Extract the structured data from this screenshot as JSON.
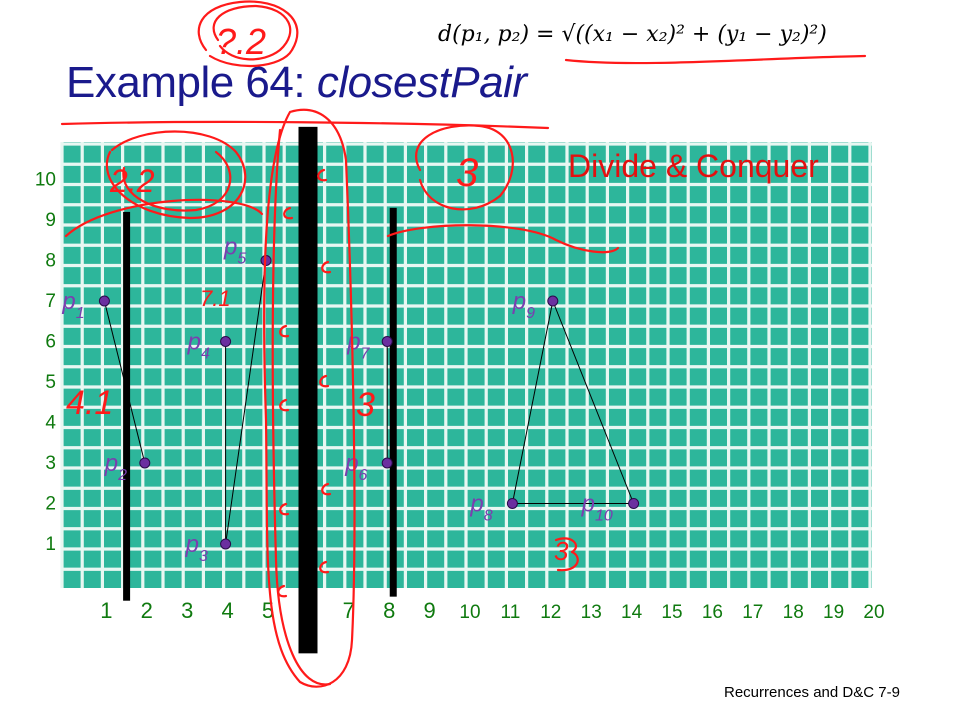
{
  "slide": {
    "title_prefix": "Example 64: ",
    "title_emph": "closestPair",
    "formula": "d(p₁, p₂) = √((x₁ − x₂)² + (y₁ − y₂)²)",
    "subtitle": "Divide & Conquer",
    "footer": "Recurrences and D&C 7-9"
  },
  "chart_data": {
    "type": "scatter",
    "x_ticks": [
      1,
      2,
      3,
      4,
      5,
      7,
      8,
      9,
      10,
      11,
      12,
      13,
      14,
      15,
      16,
      17,
      18,
      19,
      20
    ],
    "y_ticks": [
      1,
      2,
      3,
      4,
      5,
      6,
      7,
      8,
      9,
      10
    ],
    "xlim": [
      0,
      20.5
    ],
    "ylim": [
      0,
      11
    ],
    "grid": true,
    "points": [
      {
        "label": "p",
        "sub": "1",
        "x": 1,
        "y": 7
      },
      {
        "label": "p",
        "sub": "2",
        "x": 2,
        "y": 3
      },
      {
        "label": "p",
        "sub": "3",
        "x": 4,
        "y": 1
      },
      {
        "label": "p",
        "sub": "4",
        "x": 4,
        "y": 6
      },
      {
        "label": "p",
        "sub": "5",
        "x": 5,
        "y": 8
      },
      {
        "label": "p",
        "sub": "6",
        "x": 8,
        "y": 3
      },
      {
        "label": "p",
        "sub": "7",
        "x": 8,
        "y": 6
      },
      {
        "label": "p",
        "sub": "8",
        "x": 11,
        "y": 2
      },
      {
        "label": "p",
        "sub": "9",
        "x": 12,
        "y": 7
      },
      {
        "label": "p",
        "sub": "10",
        "x": 14,
        "y": 2
      }
    ],
    "segments": [
      [
        0,
        1
      ],
      [
        3,
        2
      ],
      [
        2,
        4
      ],
      [
        6,
        5
      ],
      [
        7,
        9
      ],
      [
        7,
        8
      ],
      [
        8,
        9
      ]
    ],
    "divider_lines": [
      {
        "x": 1.5,
        "y_top": 9.2,
        "y_bottom": -0.4,
        "weight": "thin"
      },
      {
        "x": 6,
        "y_top": 11.3,
        "y_bottom": -1.7,
        "weight": "thick"
      },
      {
        "x": 8.1,
        "y_top": 9.3,
        "y_bottom": -0.3,
        "weight": "thin"
      }
    ],
    "annotations": [
      "?.2",
      "2.2",
      "3",
      "4.1",
      "7.1",
      "3",
      "3"
    ],
    "colors": {
      "grid_bg": "#2db69b",
      "grid_line": "#e8f7f2",
      "tick_label": "#0f7a0f",
      "point": "#6b2fa0",
      "point_label": "#7a3fb0",
      "ink": "#ff1a1a",
      "divider": "#000000",
      "title": "#1a1a8c"
    }
  }
}
